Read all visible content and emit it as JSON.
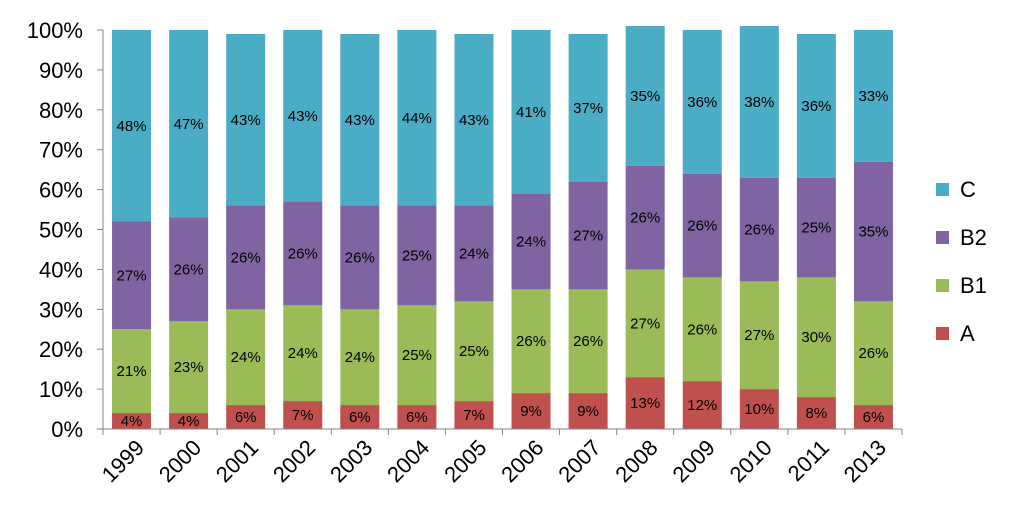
{
  "chart_data": {
    "type": "bar",
    "stacked": true,
    "percent": true,
    "title": "",
    "xlabel": "",
    "ylabel": "",
    "ylim": [
      0,
      100
    ],
    "yticks": [
      "0%",
      "10%",
      "20%",
      "30%",
      "40%",
      "50%",
      "60%",
      "70%",
      "80%",
      "90%",
      "100%"
    ],
    "categories": [
      "1999",
      "2000",
      "2001",
      "2002",
      "2003",
      "2004",
      "2005",
      "2006",
      "2007",
      "2008",
      "2009",
      "2010",
      "2011",
      "2013"
    ],
    "series": [
      {
        "name": "A",
        "color": "#c0504d",
        "values": [
          4,
          4,
          6,
          7,
          6,
          6,
          7,
          9,
          9,
          13,
          12,
          10,
          8,
          6
        ]
      },
      {
        "name": "B1",
        "color": "#9bbb59",
        "values": [
          21,
          23,
          24,
          24,
          24,
          25,
          25,
          26,
          26,
          27,
          26,
          27,
          30,
          26
        ]
      },
      {
        "name": "B2",
        "color": "#8064a2",
        "values": [
          27,
          26,
          26,
          26,
          26,
          25,
          24,
          24,
          27,
          26,
          26,
          26,
          25,
          35
        ]
      },
      {
        "name": "C",
        "color": "#4bacc6",
        "values": [
          48,
          47,
          43,
          43,
          43,
          44,
          43,
          41,
          37,
          35,
          36,
          38,
          36,
          33
        ]
      }
    ],
    "data_label_suffix": "%",
    "legend": {
      "position": "right",
      "order": [
        "C",
        "B2",
        "B1",
        "A"
      ]
    },
    "grid": false
  }
}
